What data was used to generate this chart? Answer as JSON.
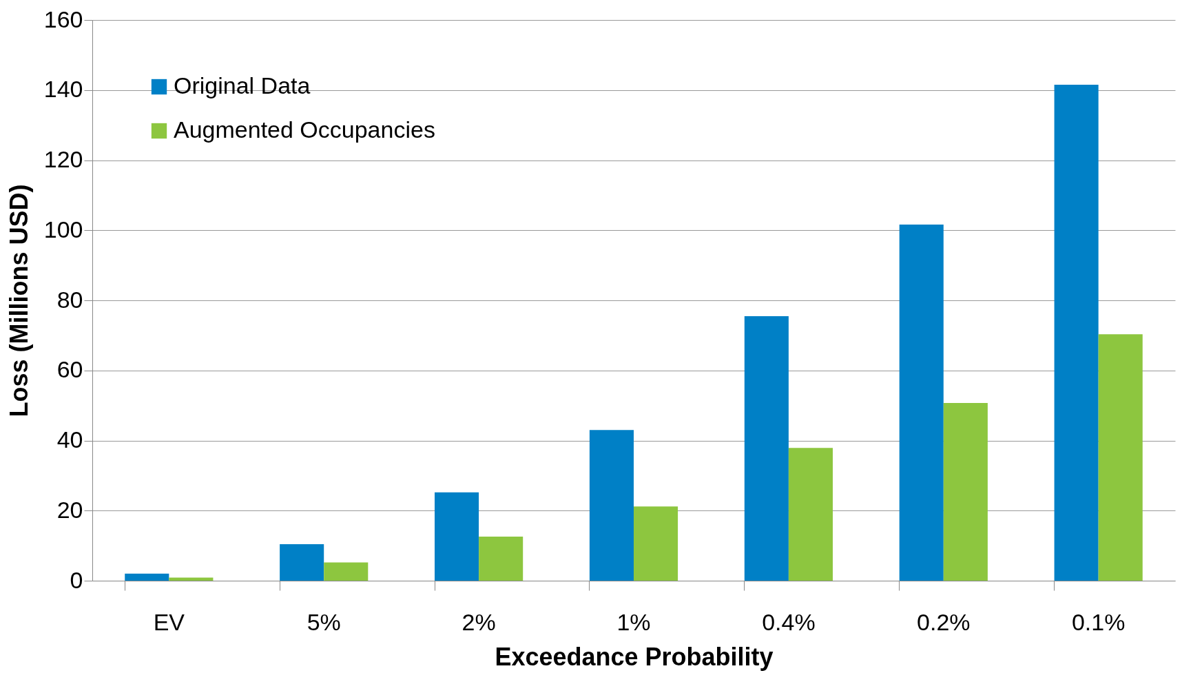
{
  "chart_data": {
    "type": "bar",
    "xlabel": "Exceedance Probability",
    "ylabel": "Loss (Millions USD)",
    "categories": [
      "EV",
      "5%",
      "2%",
      "1%",
      "0.4%",
      "0.2%",
      "0.1%"
    ],
    "series": [
      {
        "name": "Original Data",
        "color": "#0080c6",
        "values": [
          2.0,
          10.4,
          25.2,
          43.0,
          75.5,
          101.6,
          141.5
        ]
      },
      {
        "name": "Augmented Occupancies",
        "color": "#8dc63f",
        "values": [
          0.9,
          5.2,
          12.6,
          21.2,
          37.9,
          50.7,
          70.3
        ]
      }
    ],
    "ylim": [
      0,
      160
    ],
    "yticks": [
      0,
      20,
      40,
      60,
      80,
      100,
      120,
      140,
      160
    ],
    "grid": "y",
    "legend": "top left"
  }
}
